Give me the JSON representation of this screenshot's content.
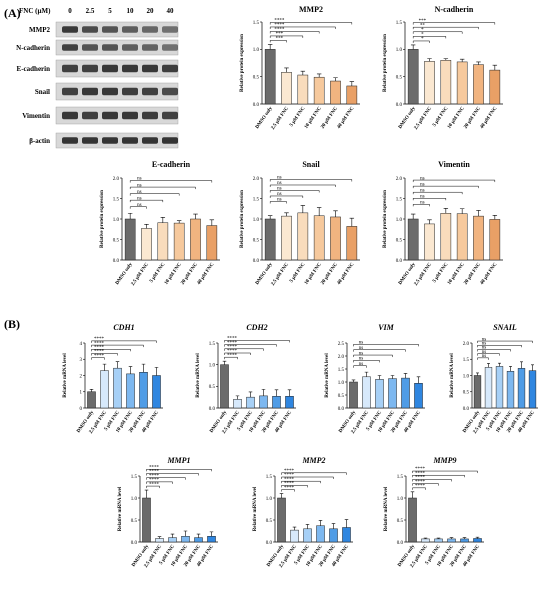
{
  "panel_labels": {
    "a": "(A)",
    "b": "(B)"
  },
  "blot": {
    "header_label": "FNC (µM)",
    "concentrations": [
      "0",
      "2.5",
      "5",
      "10",
      "20",
      "40"
    ],
    "rows": [
      "MMP2",
      "N-cadherin",
      "E-cadherin",
      "Snail",
      "Vimentin",
      "β-actin"
    ]
  },
  "chart_data": [
    {
      "id": "mmp2_protein",
      "type": "bar",
      "title": "MMP2",
      "italic": false,
      "ylabel": "Relative protein expression",
      "ylim": [
        0,
        1.5
      ],
      "yticks": [
        0,
        0.5,
        1.0,
        1.5
      ],
      "categories": [
        "DMSO only",
        "2.5 μM FNC",
        "5 μM FNC",
        "10 μM FNC",
        "20 μM FNC",
        "40 μM FNC"
      ],
      "values": [
        1.0,
        0.58,
        0.53,
        0.49,
        0.42,
        0.33
      ],
      "errors": [
        0.09,
        0.08,
        0.07,
        0.06,
        0.06,
        0.08
      ],
      "significance": [
        "***",
        "***",
        "****",
        "****",
        "****"
      ],
      "palette": "orange"
    },
    {
      "id": "ncadherin_protein",
      "type": "bar",
      "title": "N-cadherin",
      "italic": false,
      "ylabel": "Relative protein expression",
      "ylim": [
        0,
        1.5
      ],
      "yticks": [
        0,
        0.5,
        1.0,
        1.5
      ],
      "categories": [
        "DMSO only",
        "2.5 μM FNC",
        "5 μM FNC",
        "10 μM FNC",
        "20 μM FNC",
        "40 μM FNC"
      ],
      "values": [
        1.0,
        0.78,
        0.8,
        0.77,
        0.72,
        0.62
      ],
      "errors": [
        0.08,
        0.05,
        0.03,
        0.05,
        0.05,
        0.09
      ],
      "significance": [
        "*",
        "*",
        "*",
        "**",
        "***"
      ],
      "palette": "orange"
    },
    {
      "id": "ecadherin_protein",
      "type": "bar",
      "title": "E-cadherin",
      "italic": false,
      "ylabel": "Relative protein expression",
      "ylim": [
        0,
        2.0
      ],
      "yticks": [
        0,
        0.5,
        1.0,
        1.5,
        2.0
      ],
      "categories": [
        "DMSO only",
        "2.5 μM FNC",
        "5 μM FNC",
        "10 μM FNC",
        "20 μM FNC",
        "40 μM FNC"
      ],
      "values": [
        1.0,
        0.77,
        0.91,
        0.9,
        1.0,
        0.84
      ],
      "errors": [
        0.14,
        0.1,
        0.13,
        0.06,
        0.12,
        0.14
      ],
      "significance": [
        "ns",
        "ns",
        "ns",
        "ns",
        "ns"
      ],
      "palette": "orange"
    },
    {
      "id": "snail_protein",
      "type": "bar",
      "title": "Snail",
      "italic": false,
      "ylabel": "Relative protein expression",
      "ylim": [
        0,
        2.0
      ],
      "yticks": [
        0,
        0.5,
        1.0,
        1.5,
        2.0
      ],
      "categories": [
        "DMSO only",
        "2.5 μM FNC",
        "5 μM FNC",
        "10 μM FNC",
        "20 μM FNC",
        "40 μM FNC"
      ],
      "values": [
        1.0,
        1.07,
        1.15,
        1.08,
        1.05,
        0.82
      ],
      "errors": [
        0.08,
        0.08,
        0.18,
        0.2,
        0.15,
        0.2
      ],
      "significance": [
        "ns",
        "ns",
        "ns",
        "ns",
        "ns"
      ],
      "palette": "orange"
    },
    {
      "id": "vimentin_protein",
      "type": "bar",
      "title": "Vimentin",
      "italic": false,
      "ylabel": "Relative protein expression",
      "ylim": [
        0,
        2.0
      ],
      "yticks": [
        0,
        0.5,
        1.0,
        1.5,
        2.0
      ],
      "categories": [
        "DMSO only",
        "2.5 μM FNC",
        "5 μM FNC",
        "10 μM FNC",
        "20 μM FNC",
        "40 μM FNC"
      ],
      "values": [
        1.0,
        0.88,
        1.14,
        1.13,
        1.07,
        0.99
      ],
      "errors": [
        0.12,
        0.1,
        0.12,
        0.12,
        0.14,
        0.1
      ],
      "significance": [
        "ns",
        "ns",
        "ns",
        "ns",
        "ns"
      ],
      "palette": "orange"
    },
    {
      "id": "cdh1_mrna",
      "type": "bar",
      "title": "CDH1",
      "italic": true,
      "ylabel": "Relative mRNA level",
      "ylim": [
        0,
        4
      ],
      "yticks": [
        0,
        1,
        2,
        3,
        4
      ],
      "categories": [
        "DMSO only",
        "2.5 μM FNC",
        "5 μM FNC",
        "10 μM FNC",
        "20 μM FNC",
        "40 μM FNC"
      ],
      "values": [
        1.0,
        2.3,
        2.45,
        2.1,
        2.2,
        2.0
      ],
      "errors": [
        0.15,
        0.4,
        0.4,
        0.45,
        0.5,
        0.5
      ],
      "significance": [
        "****",
        "****",
        "****",
        "****",
        "****"
      ],
      "palette": "blue"
    },
    {
      "id": "cdh2_mrna",
      "type": "bar",
      "title": "CDH2",
      "italic": true,
      "ylabel": "Relative mRNA level",
      "ylim": [
        0,
        1.5
      ],
      "yticks": [
        0,
        0.5,
        1.0,
        1.5
      ],
      "categories": [
        "DMSO only",
        "2.5 μM FNC",
        "5 μM FNC",
        "10 μM FNC",
        "20 μM FNC",
        "40 μM FNC"
      ],
      "values": [
        1.0,
        0.2,
        0.25,
        0.28,
        0.27,
        0.27
      ],
      "errors": [
        0.08,
        0.08,
        0.12,
        0.15,
        0.15,
        0.15
      ],
      "significance": [
        "****",
        "****",
        "****",
        "****",
        "****"
      ],
      "palette": "blue"
    },
    {
      "id": "vim_mrna",
      "type": "bar",
      "title": "VIM",
      "italic": true,
      "ylabel": "Relative mRNA level",
      "ylim": [
        0,
        2.5
      ],
      "yticks": [
        0,
        0.5,
        1.0,
        1.5,
        2.0,
        2.5
      ],
      "categories": [
        "DMSO only",
        "2.5 μM FNC",
        "5 μM FNC",
        "10 μM FNC",
        "20 μM FNC",
        "40 μM FNC"
      ],
      "values": [
        1.0,
        1.2,
        1.1,
        1.13,
        1.15,
        0.95
      ],
      "errors": [
        0.08,
        0.18,
        0.15,
        0.12,
        0.18,
        0.25
      ],
      "significance": [
        "ns",
        "ns",
        "ns",
        "ns",
        "ns"
      ],
      "palette": "blue"
    },
    {
      "id": "snail_mrna",
      "type": "bar",
      "title": "SNAIL",
      "italic": true,
      "ylabel": "Relative mRNA level",
      "ylim": [
        0,
        2.0
      ],
      "yticks": [
        0,
        0.5,
        1.0,
        1.5,
        2.0
      ],
      "categories": [
        "DMSO only",
        "2.5 μM FNC",
        "5 μM FNC",
        "10 μM FNC",
        "20 μM FNC",
        "40 μM FNC"
      ],
      "values": [
        1.0,
        1.25,
        1.28,
        1.13,
        1.22,
        1.15
      ],
      "errors": [
        0.08,
        0.12,
        0.1,
        0.15,
        0.2,
        0.18
      ],
      "significance": [
        "ns",
        "ns",
        "ns",
        "ns",
        "ns"
      ],
      "palette": "blue"
    },
    {
      "id": "mmp1_mrna",
      "type": "bar",
      "title": "MMP1",
      "italic": true,
      "ylabel": "Relative mRNA level",
      "ylim": [
        0,
        1.5
      ],
      "yticks": [
        0,
        0.5,
        1.0,
        1.5
      ],
      "categories": [
        "DMSO only",
        "2.5 μM FNC",
        "5 μM FNC",
        "10 μM FNC",
        "20 μM FNC",
        "40 μM FNC"
      ],
      "values": [
        1.0,
        0.08,
        0.1,
        0.13,
        0.1,
        0.13
      ],
      "errors": [
        0.18,
        0.04,
        0.08,
        0.12,
        0.08,
        0.1
      ],
      "significance": [
        "****",
        "****",
        "****",
        "****",
        "****"
      ],
      "palette": "blue"
    },
    {
      "id": "mmp2_mrna",
      "type": "bar",
      "title": "MMP2",
      "italic": true,
      "ylabel": "Relative mRNA level",
      "ylim": [
        0,
        1.5
      ],
      "yticks": [
        0,
        0.5,
        1.0,
        1.5
      ],
      "categories": [
        "DMSO only",
        "2.5 μM FNC",
        "5 μM FNC",
        "10 μM FNC",
        "20 μM FNC",
        "40 μM FNC"
      ],
      "values": [
        1.0,
        0.27,
        0.3,
        0.37,
        0.3,
        0.33
      ],
      "errors": [
        0.1,
        0.07,
        0.1,
        0.12,
        0.12,
        0.18
      ],
      "significance": [
        "****",
        "****",
        "****",
        "****",
        "****"
      ],
      "palette": "blue"
    },
    {
      "id": "mmp9_mrna",
      "type": "bar",
      "title": "MMP9",
      "italic": true,
      "ylabel": "Relative mRNA level",
      "ylim": [
        0,
        1.5
      ],
      "yticks": [
        0,
        0.5,
        1.0,
        1.5
      ],
      "categories": [
        "DMSO only",
        "2.5 μM FNC",
        "5 μM FNC",
        "10 μM FNC",
        "20 μM FNC",
        "40 μM FNC"
      ],
      "values": [
        1.0,
        0.07,
        0.07,
        0.07,
        0.07,
        0.08
      ],
      "errors": [
        0.14,
        0.02,
        0.02,
        0.03,
        0.03,
        0.03
      ],
      "significance": [
        "****",
        "****",
        "****",
        "****",
        "****"
      ],
      "palette": "blue"
    }
  ],
  "colors": {
    "control": "#6b6b6b",
    "orange": [
      "#fbe8d1",
      "#f9dcbc",
      "#f6c99d",
      "#f1b480",
      "#e9a066"
    ],
    "blue": [
      "#d7e9fb",
      "#a7d0f6",
      "#7db8f0",
      "#4f9ce6",
      "#2f86e0"
    ]
  }
}
